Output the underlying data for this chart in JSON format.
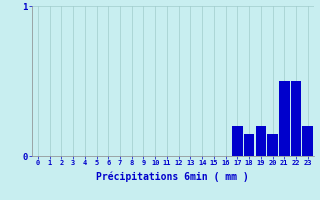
{
  "categories": [
    0,
    1,
    2,
    3,
    4,
    5,
    6,
    7,
    8,
    9,
    10,
    11,
    12,
    13,
    14,
    15,
    16,
    17,
    18,
    19,
    20,
    21,
    22,
    23
  ],
  "bar_values": [
    0,
    0,
    0,
    0,
    0,
    0,
    0,
    0,
    0,
    0,
    0,
    0,
    0,
    0,
    0,
    0,
    0,
    0.2,
    0.15,
    0.2,
    0.15,
    0.5,
    0.5,
    0.2
  ],
  "bar_color": "#0000cc",
  "background_color": "#c8eef0",
  "grid_color": "#a0cccc",
  "xlabel": "Précipitations 6min ( mm )",
  "xlabel_color": "#0000cc",
  "tick_color": "#0000cc",
  "ylim": [
    0,
    1.0
  ],
  "xlim": [
    -0.5,
    23.5
  ],
  "yticks": [
    0,
    1
  ],
  "ytick_labels": [
    "0",
    "1"
  ]
}
